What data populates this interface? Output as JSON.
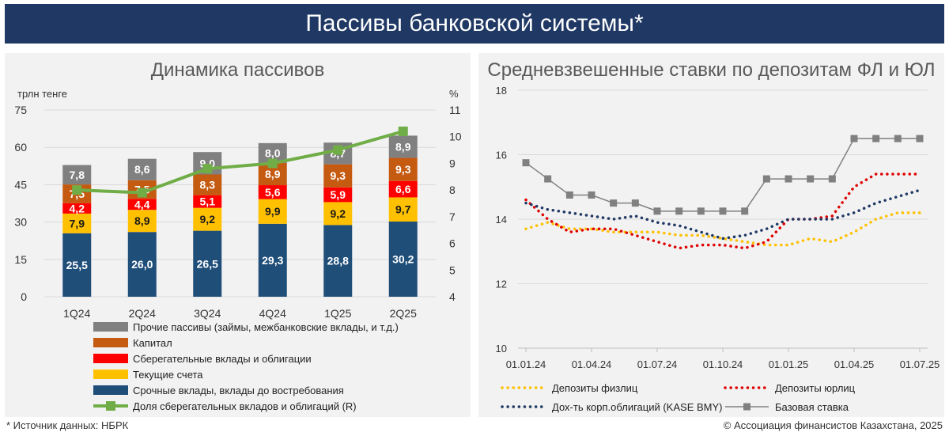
{
  "header": {
    "title": "Пассивы банковской системы*"
  },
  "left_chart": {
    "title": "Динамика пассивов",
    "left_unit": "трлн тенге",
    "right_unit": "%"
  },
  "right_chart": {
    "title": "Средневзвешенные ставки по депозитам ФЛ и ЮЛ"
  },
  "footer": {
    "source": "* Источник данных: НБРК",
    "copyright": "© Ассоциация финансистов Казахстана, 2025"
  },
  "colors": {
    "header_bg": "#1f3864",
    "srochnye": "#1f4e79",
    "tekushchie": "#ffc000",
    "sberegatelnye": "#ff0000",
    "kapital": "#c55a11",
    "prochie": "#808080",
    "share_line": "#70ad47",
    "fl": "#ffc000",
    "ul": "#e00000",
    "bonds": "#1f3864",
    "base": "#808080"
  },
  "chart_data": [
    {
      "type": "bar",
      "stacked": true,
      "title": "Динамика пассивов",
      "categories": [
        "1Q24",
        "2Q24",
        "3Q24",
        "4Q24",
        "1Q25",
        "2Q25"
      ],
      "ylabel": "трлн тенге",
      "ylim": [
        0,
        75
      ],
      "yticks": [
        0,
        15,
        30,
        45,
        60,
        75
      ],
      "y2label": "%",
      "y2lim": [
        4,
        11
      ],
      "y2ticks": [
        4,
        5,
        6,
        7,
        8,
        9,
        10,
        11
      ],
      "series": [
        {
          "name": "Срочные вклады, вклады до востребования",
          "values": [
            25.5,
            26.0,
            26.5,
            29.3,
            28.8,
            30.2
          ],
          "labels": [
            "25,5",
            "26,0",
            "26,5",
            "29,3",
            "28,8",
            "30,2"
          ]
        },
        {
          "name": "Текущие счета",
          "values": [
            7.9,
            8.9,
            9.2,
            9.9,
            9.2,
            9.7
          ],
          "labels": [
            "7,9",
            "8,9",
            "9,2",
            "9,9",
            "9,2",
            "9,7"
          ]
        },
        {
          "name": "Сберегательные вклады и облигации",
          "values": [
            4.2,
            4.4,
            5.1,
            5.6,
            5.9,
            6.6
          ],
          "labels": [
            "4,2",
            "4,4",
            "5,1",
            "5,6",
            "5,9",
            "6,6"
          ]
        },
        {
          "name": "Капитал",
          "values": [
            7.5,
            7.5,
            8.3,
            8.9,
            9.3,
            9.3
          ],
          "labels": [
            "7,5",
            "7,5",
            "8,3",
            "8,9",
            "9,3",
            "9,3"
          ]
        },
        {
          "name": "Прочие пассивы (займы, межбанковские вклады, и т.д.)",
          "values": [
            7.8,
            8.6,
            9.0,
            8.0,
            8.7,
            8.9
          ],
          "labels": [
            "7,8",
            "8,6",
            "9,0",
            "8,0",
            "8,7",
            "8,9"
          ]
        }
      ],
      "line_series": {
        "name": "Доля сберегательных вкладов и облигаций (R)",
        "axis": "right",
        "values": [
          8.0,
          7.9,
          8.8,
          9.0,
          9.5,
          10.2
        ]
      },
      "legend_order": [
        "Прочие пассивы (займы, межбанковские вклады, и т.д.)",
        "Капитал",
        "Сберегательные вклады и облигации",
        "Текущие счета",
        "Срочные вклады, вклады до востребования",
        "Доля сберегательных вкладов и облигаций (R)"
      ],
      "legend_position": "bottom"
    },
    {
      "type": "line",
      "title": "Средневзвешенные ставки по депозитам ФЛ и ЮЛ",
      "ylim": [
        10,
        18
      ],
      "yticks": [
        10,
        12,
        14,
        16,
        18
      ],
      "x_ticks": [
        "01.01.24",
        "01.04.24",
        "01.07.24",
        "01.10.24",
        "01.01.25",
        "01.04.25",
        "01.07.25"
      ],
      "x_months": [
        "01.24",
        "02.24",
        "03.24",
        "04.24",
        "05.24",
        "06.24",
        "07.24",
        "08.24",
        "09.24",
        "10.24",
        "11.24",
        "12.24",
        "01.25",
        "02.25",
        "03.25",
        "04.25",
        "05.25",
        "06.25",
        "07.25"
      ],
      "grid": true,
      "series": [
        {
          "name": "Депозиты физлиц",
          "style": "dotted",
          "values": [
            13.7,
            13.9,
            13.7,
            13.7,
            13.6,
            13.6,
            13.6,
            13.5,
            13.5,
            13.4,
            13.3,
            13.2,
            13.2,
            13.4,
            13.3,
            13.6,
            14.0,
            14.2,
            14.2
          ]
        },
        {
          "name": "Депозиты юрлиц",
          "style": "dotted",
          "values": [
            14.6,
            14.0,
            13.6,
            13.7,
            13.7,
            13.5,
            13.3,
            13.1,
            13.2,
            13.2,
            13.1,
            13.3,
            14.0,
            14.0,
            14.1,
            15.0,
            15.4,
            15.4,
            15.4
          ]
        },
        {
          "name": "Дох-ть корп.облигаций (KASE BMY)",
          "style": "dotted",
          "values": [
            14.5,
            14.3,
            14.2,
            14.1,
            14.0,
            14.1,
            13.9,
            13.8,
            13.6,
            13.4,
            13.5,
            13.7,
            14.0,
            14.0,
            14.0,
            14.2,
            14.5,
            14.7,
            14.9
          ]
        },
        {
          "name": "Базовая ставка",
          "style": "step-markers",
          "values": [
            15.75,
            15.25,
            14.75,
            14.75,
            14.5,
            14.5,
            14.25,
            14.25,
            14.25,
            14.25,
            14.25,
            15.25,
            15.25,
            15.25,
            15.25,
            16.5,
            16.5,
            16.5,
            16.5
          ]
        }
      ],
      "legend_position": "bottom"
    }
  ]
}
